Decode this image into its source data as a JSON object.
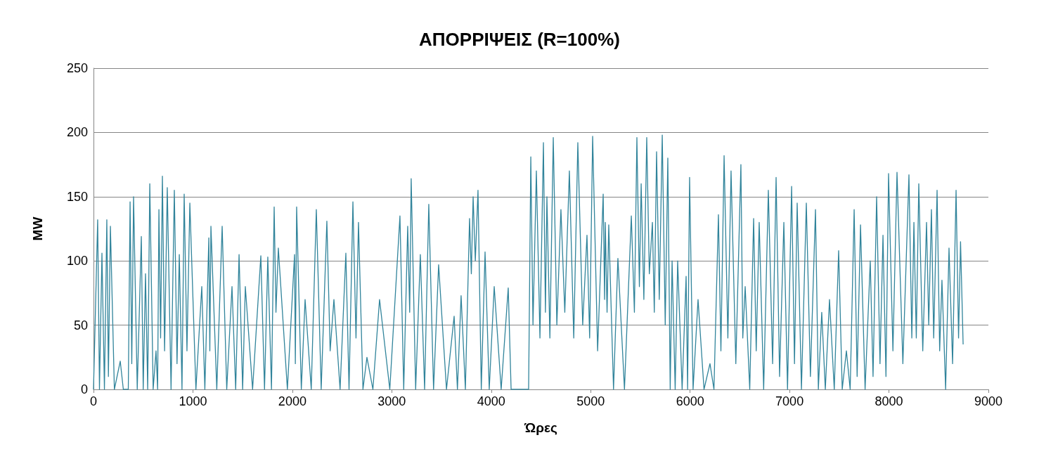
{
  "chart_data": {
    "type": "line",
    "title": "ΑΠΟΡΡΙΨΕΙΣ (R=100%)",
    "xlabel": "Ώρες",
    "ylabel": "MW",
    "xlim": [
      0,
      9000
    ],
    "xticks": [
      0,
      1000,
      2000,
      3000,
      4000,
      5000,
      6000,
      7000,
      8000,
      9000
    ],
    "ylim": [
      0,
      250
    ],
    "yticks": [
      0,
      50,
      100,
      150,
      200,
      250
    ],
    "grid": "y",
    "marker": "none",
    "line_style": "solid",
    "series": [
      {
        "color": "#31849b",
        "x": [
          0,
          42,
          60,
          85,
          110,
          134,
          150,
          170,
          210,
          269,
          300,
          350,
          368,
          385,
          403,
          440,
          481,
          500,
          523,
          545,
          566,
          600,
          629,
          645,
          658,
          675,
          693,
          715,
          742,
          780,
          813,
          840,
          863,
          890,
          912,
          940,
          969,
          1030,
          1089,
          1120,
          1160,
          1170,
          1181,
          1240,
          1294,
          1340,
          1393,
          1430,
          1464,
          1500,
          1527,
          1600,
          1683,
          1720,
          1753,
          1790,
          1817,
          1835,
          1859,
          1950,
          2022,
          2030,
          2043,
          2090,
          2128,
          2190,
          2241,
          2290,
          2347,
          2380,
          2418,
          2480,
          2538,
          2570,
          2609,
          2640,
          2665,
          2710,
          2750,
          2810,
          2877,
          2980,
          3082,
          3120,
          3160,
          3180,
          3195,
          3240,
          3287,
          3330,
          3372,
          3420,
          3471,
          3550,
          3627,
          3660,
          3697,
          3740,
          3782,
          3800,
          3818,
          3840,
          3867,
          3900,
          3938,
          3980,
          4030,
          4100,
          4171,
          4200,
          4376,
          4398,
          4420,
          4454,
          4490,
          4525,
          4545,
          4560,
          4590,
          4624,
          4660,
          4701,
          4740,
          4786,
          4830,
          4871,
          4920,
          4963,
          4990,
          5020,
          5070,
          5126,
          5140,
          5147,
          5165,
          5182,
          5230,
          5274,
          5340,
          5409,
          5440,
          5465,
          5490,
          5508,
          5535,
          5564,
          5590,
          5621,
          5640,
          5663,
          5690,
          5720,
          5750,
          5776,
          5800,
          5819,
          5850,
          5875,
          5920,
          5960,
          5975,
          5995,
          6030,
          6080,
          6140,
          6200,
          6240,
          6285,
          6310,
          6342,
          6380,
          6412,
          6460,
          6511,
          6530,
          6554,
          6600,
          6639,
          6665,
          6695,
          6740,
          6787,
          6830,
          6865,
          6900,
          6943,
          6980,
          7021,
          7050,
          7077,
          7120,
          7169,
          7210,
          7261,
          7290,
          7324,
          7360,
          7402,
          7450,
          7494,
          7530,
          7572,
          7610,
          7650,
          7680,
          7714,
          7760,
          7812,
          7840,
          7876,
          7910,
          7940,
          7970,
          7996,
          8040,
          8081,
          8140,
          8201,
          8230,
          8251,
          8275,
          8300,
          8340,
          8378,
          8400,
          8427,
          8450,
          8484,
          8510,
          8533,
          8570,
          8604,
          8640,
          8675,
          8700,
          8720,
          8746
        ],
        "values": [
          0,
          132,
          0,
          106,
          0,
          132,
          10,
          127,
          0,
          22,
          0,
          0,
          146,
          20,
          150,
          0,
          119,
          0,
          90,
          0,
          160,
          0,
          30,
          0,
          140,
          40,
          166,
          30,
          157,
          0,
          155,
          20,
          105,
          0,
          152,
          30,
          145,
          0,
          80,
          0,
          118,
          30,
          127,
          0,
          127,
          0,
          80,
          0,
          105,
          0,
          80,
          0,
          104,
          0,
          103,
          0,
          142,
          60,
          110,
          0,
          105,
          20,
          142,
          0,
          70,
          0,
          140,
          0,
          131,
          30,
          70,
          0,
          106,
          0,
          146,
          40,
          130,
          0,
          25,
          0,
          70,
          0,
          135,
          0,
          127,
          60,
          164,
          0,
          105,
          0,
          144,
          0,
          97,
          0,
          57,
          0,
          73,
          0,
          133,
          90,
          150,
          100,
          155,
          0,
          107,
          0,
          80,
          0,
          79,
          0,
          0,
          181,
          50,
          170,
          40,
          192,
          60,
          150,
          40,
          196,
          50,
          140,
          60,
          170,
          40,
          192,
          50,
          120,
          40,
          197,
          30,
          152,
          70,
          130,
          60,
          128,
          0,
          102,
          0,
          135,
          60,
          196,
          80,
          160,
          70,
          196,
          90,
          130,
          60,
          185,
          70,
          198,
          50,
          180,
          0,
          100,
          0,
          100,
          0,
          88,
          0,
          165,
          0,
          70,
          0,
          20,
          0,
          136,
          30,
          182,
          40,
          170,
          20,
          175,
          40,
          80,
          0,
          133,
          30,
          130,
          0,
          155,
          20,
          165,
          10,
          130,
          0,
          158,
          20,
          145,
          0,
          145,
          10,
          140,
          0,
          60,
          0,
          70,
          0,
          108,
          0,
          30,
          0,
          140,
          10,
          128,
          0,
          100,
          10,
          150,
          20,
          120,
          10,
          168,
          30,
          169,
          20,
          167,
          40,
          130,
          40,
          160,
          30,
          130,
          50,
          140,
          40,
          155,
          30,
          85,
          0,
          110,
          20,
          155,
          40,
          115,
          35
        ]
      }
    ]
  }
}
